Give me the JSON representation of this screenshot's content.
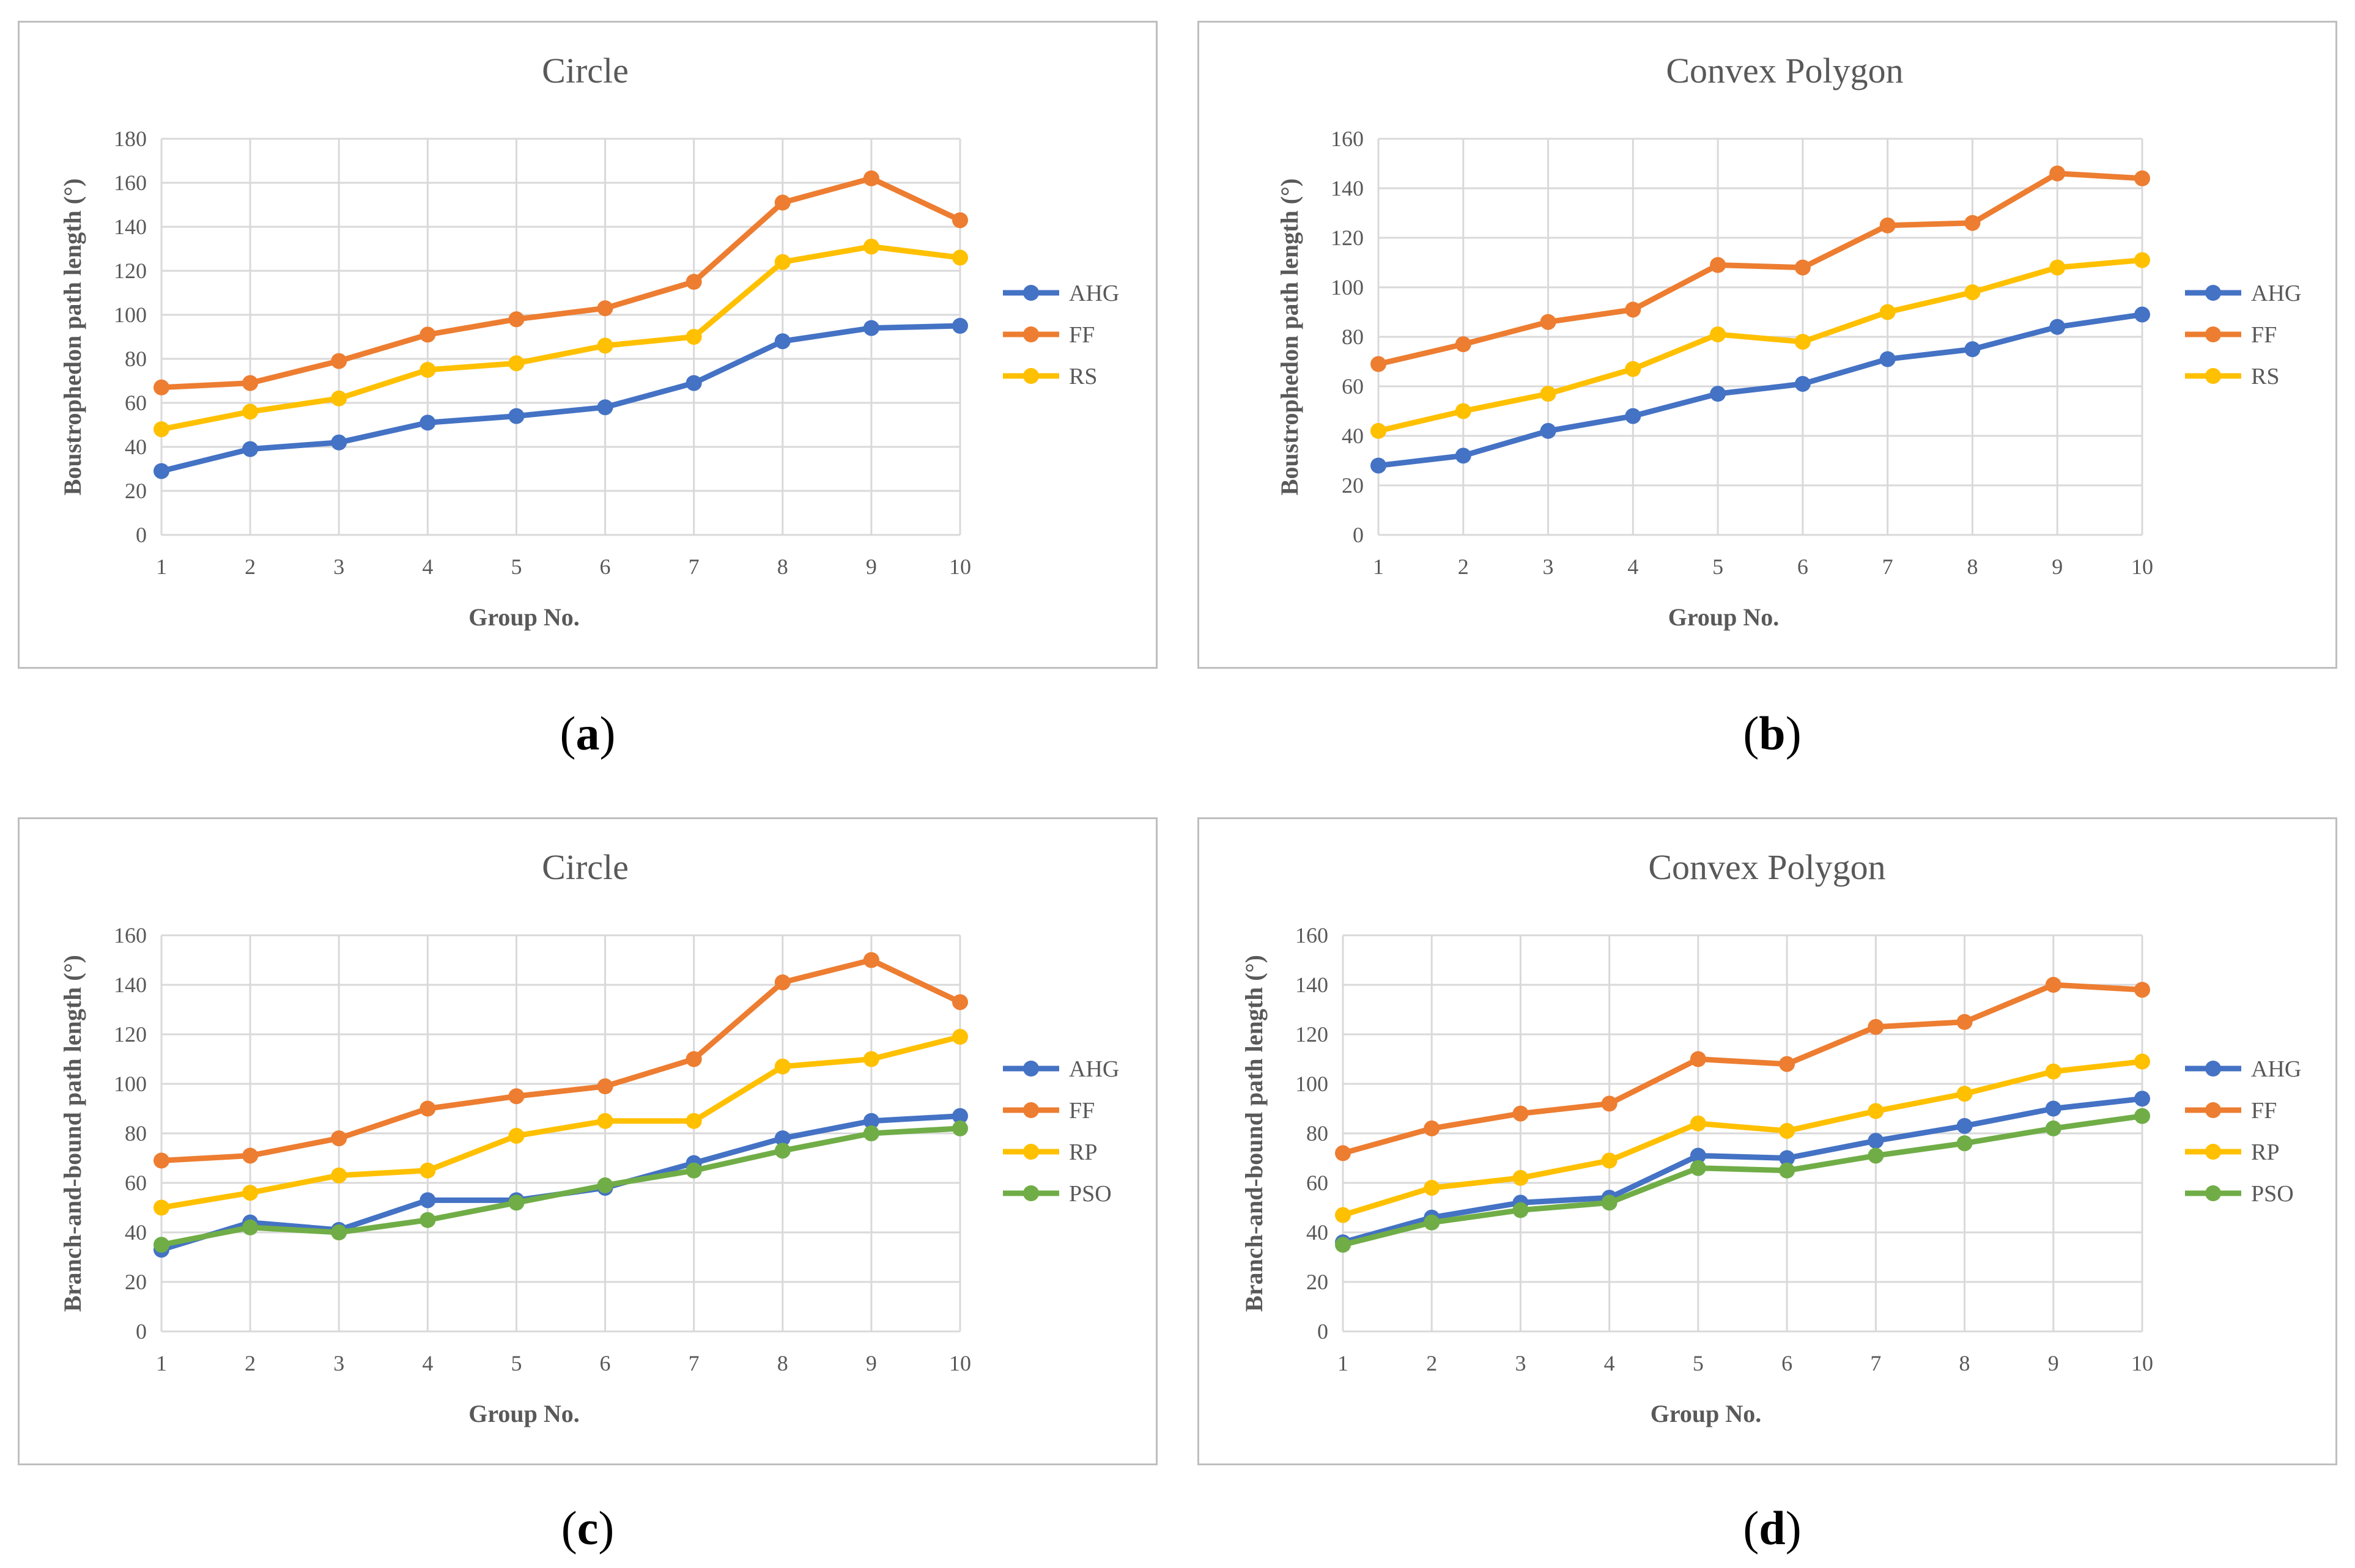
{
  "captions": [
    {
      "open": "(",
      "letter": "a",
      "close": ")"
    },
    {
      "open": "(",
      "letter": "b",
      "close": ")"
    },
    {
      "open": "(",
      "letter": "c",
      "close": ")"
    },
    {
      "open": "(",
      "letter": "d",
      "close": ")"
    }
  ],
  "chart_data": [
    {
      "type": "line",
      "title": "Circle",
      "xlabel": "Group No.",
      "ylabel": "Boustrophedon path length  (°)",
      "x": [
        1,
        2,
        3,
        4,
        5,
        6,
        7,
        8,
        9,
        10
      ],
      "ylim": [
        0,
        180
      ],
      "ystep": 20,
      "grid": true,
      "legend_position": "right",
      "series": [
        {
          "name": "AHG",
          "color": "#4472c4",
          "values": [
            29,
            39,
            42,
            51,
            54,
            58,
            69,
            88,
            94,
            95
          ]
        },
        {
          "name": "FF",
          "color": "#ed7d31",
          "values": [
            67,
            69,
            79,
            91,
            98,
            103,
            115,
            151,
            162,
            143
          ]
        },
        {
          "name": "RS",
          "color": "#ffc000",
          "values": [
            48,
            56,
            62,
            75,
            78,
            86,
            90,
            124,
            131,
            126
          ]
        }
      ]
    },
    {
      "type": "line",
      "title": "Convex Polygon",
      "xlabel": "Group No.",
      "ylabel": "Boustrophedon path length  (°)",
      "x": [
        1,
        2,
        3,
        4,
        5,
        6,
        7,
        8,
        9,
        10
      ],
      "ylim": [
        0,
        160
      ],
      "ystep": 20,
      "grid": true,
      "legend_position": "right",
      "series": [
        {
          "name": "AHG",
          "color": "#4472c4",
          "values": [
            28,
            32,
            42,
            48,
            57,
            61,
            71,
            75,
            84,
            89
          ]
        },
        {
          "name": "FF",
          "color": "#ed7d31",
          "values": [
            69,
            77,
            86,
            91,
            109,
            108,
            125,
            126,
            146,
            144
          ]
        },
        {
          "name": "RS",
          "color": "#ffc000",
          "values": [
            42,
            50,
            57,
            67,
            81,
            78,
            90,
            98,
            108,
            111
          ]
        }
      ]
    },
    {
      "type": "line",
      "title": "Circle",
      "xlabel": "Group No.",
      "ylabel": "Branch-and-bound path length  (°)",
      "x": [
        1,
        2,
        3,
        4,
        5,
        6,
        7,
        8,
        9,
        10
      ],
      "ylim": [
        0,
        160
      ],
      "ystep": 20,
      "grid": true,
      "legend_position": "right",
      "series": [
        {
          "name": "AHG",
          "color": "#4472c4",
          "values": [
            33,
            44,
            41,
            53,
            53,
            58,
            68,
            78,
            85,
            87
          ]
        },
        {
          "name": "FF",
          "color": "#ed7d31",
          "values": [
            69,
            71,
            78,
            90,
            95,
            99,
            110,
            141,
            150,
            133
          ]
        },
        {
          "name": "RP",
          "color": "#ffc000",
          "values": [
            50,
            56,
            63,
            65,
            79,
            85,
            85,
            107,
            110,
            119
          ]
        },
        {
          "name": "PSO",
          "color": "#70ad47",
          "values": [
            35,
            42,
            40,
            45,
            52,
            59,
            65,
            73,
            80,
            82
          ]
        }
      ]
    },
    {
      "type": "line",
      "title": "Convex Polygon",
      "xlabel": "Group No.",
      "ylabel": "Branch-and-bound path length  (°)",
      "x": [
        1,
        2,
        3,
        4,
        5,
        6,
        7,
        8,
        9,
        10
      ],
      "ylim": [
        0,
        160
      ],
      "ystep": 20,
      "grid": true,
      "legend_position": "right",
      "series": [
        {
          "name": "AHG",
          "color": "#4472c4",
          "values": [
            36,
            46,
            52,
            54,
            71,
            70,
            77,
            83,
            90,
            94
          ]
        },
        {
          "name": "FF",
          "color": "#ed7d31",
          "values": [
            72,
            82,
            88,
            92,
            110,
            108,
            123,
            125,
            140,
            138
          ]
        },
        {
          "name": "RP",
          "color": "#ffc000",
          "values": [
            47,
            58,
            62,
            69,
            84,
            81,
            89,
            96,
            105,
            109
          ]
        },
        {
          "name": "PSO",
          "color": "#70ad47",
          "values": [
            35,
            44,
            49,
            52,
            66,
            65,
            71,
            76,
            82,
            87
          ]
        }
      ]
    }
  ]
}
